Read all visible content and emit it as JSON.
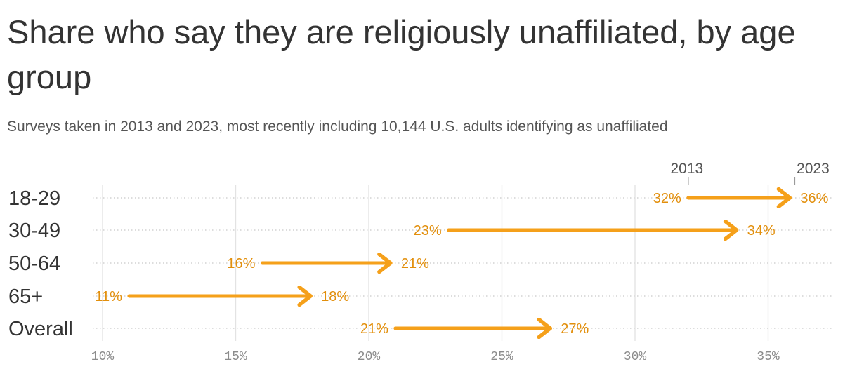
{
  "chart_data": {
    "type": "arrow-dumbbell",
    "title": "Share who say they are religiously unaffiliated, by age group",
    "subtitle": "Surveys taken in 2013 and 2023, most recently including 10,144 U.S. adults identifying as unaffiliated",
    "categories": [
      "18-29",
      "30-49",
      "50-64",
      "65+",
      "Overall"
    ],
    "series": [
      {
        "name": "2013",
        "values": [
          32,
          23,
          16,
          11,
          21
        ]
      },
      {
        "name": "2023",
        "values": [
          36,
          34,
          21,
          18,
          27
        ]
      }
    ],
    "value_labels": {
      "2013": [
        "32%",
        "23%",
        "16%",
        "11%",
        "21%"
      ],
      "2023": [
        "36%",
        "34%",
        "21%",
        "18%",
        "27%"
      ]
    },
    "xlim": [
      10,
      37
    ],
    "x_ticks": [
      10,
      15,
      20,
      25,
      30,
      35
    ],
    "x_tick_labels": [
      "10%",
      "15%",
      "20%",
      "25%",
      "30%",
      "35%"
    ],
    "grid": true,
    "legend_placement": "top-right",
    "colors": {
      "arrow": "#f5a01a",
      "label": "#e28f0c",
      "grid": "#e3e3e3",
      "dotted_line": "#d2d2d2"
    }
  }
}
